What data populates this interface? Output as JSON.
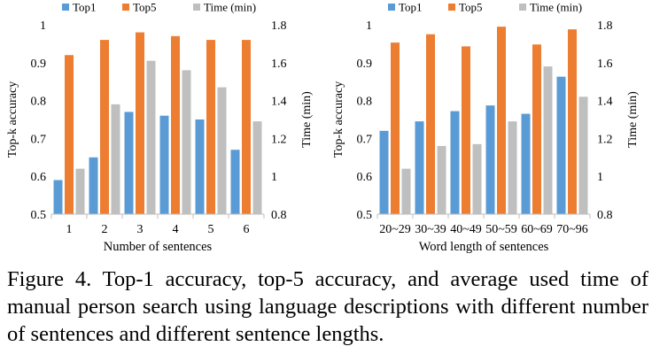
{
  "colors": {
    "Top1": "#5b9bd5",
    "Top5": "#ed7d31",
    "Time (min)": "#bfbfbf",
    "axis": "#bfbfbf"
  },
  "chart_data": [
    {
      "type": "bar",
      "xlabel": "Number of sentences",
      "ylabel": "Top-k accuracy",
      "y2label": "Time (min)",
      "legend_position": "top",
      "grid": false,
      "categories": [
        "1",
        "2",
        "3",
        "4",
        "5",
        "6"
      ],
      "ylim": [
        0.5,
        1.0
      ],
      "yticks": [
        "0.5",
        "0.6",
        "0.7",
        "0.8",
        "0.9",
        "1"
      ],
      "y2lim": [
        0.8,
        1.8
      ],
      "y2ticks": [
        "0.8",
        "1",
        "1.2",
        "1.4",
        "1.6",
        "1.8"
      ],
      "series": [
        {
          "name": "Top1",
          "axis": "left",
          "values": [
            0.59,
            0.65,
            0.77,
            0.76,
            0.75,
            0.67
          ]
        },
        {
          "name": "Top5",
          "axis": "left",
          "values": [
            0.92,
            0.96,
            0.98,
            0.97,
            0.96,
            0.96
          ]
        },
        {
          "name": "Time (min)",
          "axis": "right",
          "values": [
            1.04,
            1.38,
            1.61,
            1.56,
            1.47,
            1.29
          ]
        }
      ]
    },
    {
      "type": "bar",
      "xlabel": "Word length of sentences",
      "ylabel": "Top-k accuracy",
      "y2label": "Time (min)",
      "legend_position": "top",
      "grid": false,
      "categories": [
        "20~29",
        "30~39",
        "40~49",
        "50~59",
        "60~69",
        "70~96"
      ],
      "ylim": [
        0.5,
        1.0
      ],
      "yticks": [
        "0.5",
        "0.6",
        "0.7",
        "0.8",
        "0.9",
        "1"
      ],
      "y2lim": [
        0.8,
        1.8
      ],
      "y2ticks": [
        "0.8",
        "1",
        "1.2",
        "1.4",
        "1.6",
        "1.8"
      ],
      "series": [
        {
          "name": "Top1",
          "axis": "left",
          "values": [
            0.72,
            0.745,
            0.772,
            0.787,
            0.765,
            0.863
          ]
        },
        {
          "name": "Top5",
          "axis": "left",
          "values": [
            0.953,
            0.975,
            0.943,
            0.995,
            0.948,
            0.988
          ]
        },
        {
          "name": "Time (min)",
          "axis": "right",
          "values": [
            1.04,
            1.16,
            1.17,
            1.29,
            1.58,
            1.42
          ]
        }
      ]
    }
  ],
  "caption": "Figure 4. Top-1 accuracy, top-5 accuracy, and average used time of manual person search using language descriptions with different number of sentences and different sentence lengths."
}
